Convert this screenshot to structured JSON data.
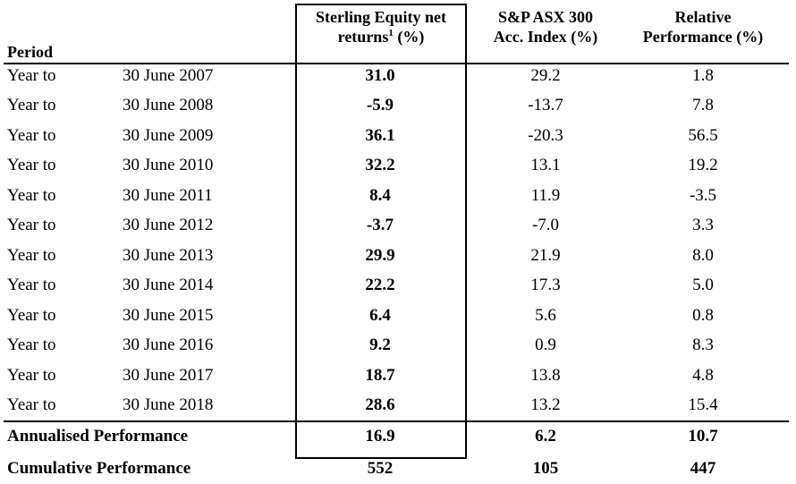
{
  "header": {
    "period": "Period",
    "fund_line1": "Sterling Equity net",
    "fund_line2": "returns",
    "fund_footnote": "1",
    "fund_line2_suffix": " (%)",
    "index_line1": "S&P ASX 300",
    "index_line2": "Acc. Index (%)",
    "relative_line1": "Relative",
    "relative_line2": "Performance (%)"
  },
  "rows": [
    {
      "label": "Year to",
      "date": "30 June 2007",
      "fund": "31.0",
      "index": "29.2",
      "relative": "1.8"
    },
    {
      "label": "Year to",
      "date": "30 June 2008",
      "fund": "-5.9",
      "index": "-13.7",
      "relative": "7.8"
    },
    {
      "label": "Year to",
      "date": "30 June 2009",
      "fund": "36.1",
      "index": "-20.3",
      "relative": "56.5"
    },
    {
      "label": "Year to",
      "date": "30 June 2010",
      "fund": "32.2",
      "index": "13.1",
      "relative": "19.2"
    },
    {
      "label": "Year to",
      "date": "30 June 2011",
      "fund": "8.4",
      "index": "11.9",
      "relative": "-3.5"
    },
    {
      "label": "Year to",
      "date": "30 June 2012",
      "fund": "-3.7",
      "index": "-7.0",
      "relative": "3.3"
    },
    {
      "label": "Year to",
      "date": "30 June 2013",
      "fund": "29.9",
      "index": "21.9",
      "relative": "8.0"
    },
    {
      "label": "Year to",
      "date": "30 June 2014",
      "fund": "22.2",
      "index": "17.3",
      "relative": "5.0"
    },
    {
      "label": "Year to",
      "date": "30 June 2015",
      "fund": "6.4",
      "index": "5.6",
      "relative": "0.8"
    },
    {
      "label": "Year to",
      "date": "30 June 2016",
      "fund": "9.2",
      "index": "0.9",
      "relative": "8.3"
    },
    {
      "label": "Year to",
      "date": "30 June 2017",
      "fund": "18.7",
      "index": "13.8",
      "relative": "4.8"
    },
    {
      "label": "Year to",
      "date": "30 June 2018",
      "fund": "28.6",
      "index": "13.2",
      "relative": "15.4"
    }
  ],
  "annualised": {
    "label": "Annualised Performance",
    "fund": "16.9",
    "index": "6.2",
    "relative": "10.7"
  },
  "cumulative": {
    "label": "Cumulative Performance",
    "fund": "552",
    "index": "105",
    "relative": "447"
  }
}
